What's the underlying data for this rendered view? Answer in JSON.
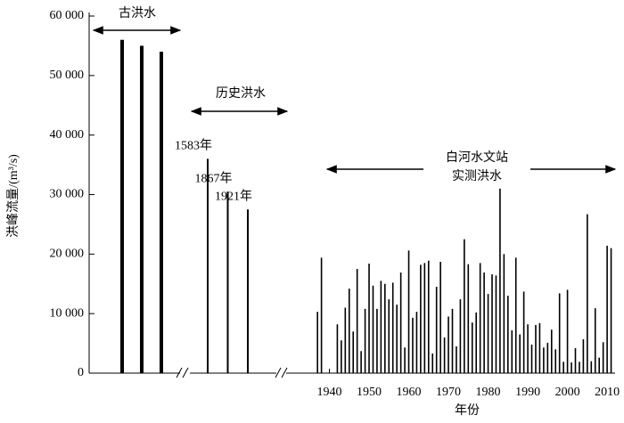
{
  "chart_data": {
    "type": "bar",
    "ylabel": "洪峰流量/(m³/s)",
    "xlabel": "年份",
    "ylim": [
      0,
      60000
    ],
    "yticks": [
      0,
      {
        "value": 10000,
        "label": "10 000"
      },
      {
        "value": 20000,
        "label": "20 000"
      },
      {
        "value": 30000,
        "label": "30 000"
      },
      {
        "value": 40000,
        "label": "40 000"
      },
      {
        "value": 50000,
        "label": "50 000"
      },
      {
        "value": 60000,
        "label": "60 000"
      }
    ],
    "xlim": [
      1930,
      2012
    ],
    "xticks": [
      1940,
      1950,
      1960,
      1970,
      1980,
      1990,
      2000,
      2010
    ],
    "color": "#000000",
    "paleo": {
      "name": "古洪水",
      "values": [
        56000,
        55000,
        54000
      ]
    },
    "historical": {
      "name": "历史洪水",
      "categories": [
        "1583年",
        "1867年",
        "1921年"
      ],
      "values": [
        36000,
        30500,
        27500
      ]
    },
    "measured": {
      "name": [
        "白河水文站",
        "实测洪水"
      ],
      "x": [
        1937,
        1938,
        1942,
        1943,
        1944,
        1945,
        1946,
        1947,
        1948,
        1949,
        1950,
        1951,
        1952,
        1953,
        1954,
        1955,
        1956,
        1957,
        1958,
        1959,
        1960,
        1961,
        1962,
        1963,
        1964,
        1965,
        1966,
        1967,
        1968,
        1969,
        1970,
        1971,
        1972,
        1973,
        1974,
        1975,
        1976,
        1977,
        1978,
        1979,
        1980,
        1981,
        1982,
        1983,
        1984,
        1985,
        1986,
        1987,
        1988,
        1989,
        1990,
        1991,
        1992,
        1993,
        1994,
        1995,
        1996,
        1997,
        1998,
        1999,
        2000,
        2001,
        2002,
        2003,
        2004,
        2005,
        2006,
        2007,
        2008,
        2009,
        2010,
        2011
      ],
      "values": [
        10300,
        19400,
        8200,
        5500,
        11000,
        14200,
        7000,
        17500,
        3700,
        10800,
        18400,
        14700,
        10800,
        15500,
        15000,
        12400,
        15200,
        11500,
        16900,
        4300,
        20600,
        9300,
        10300,
        18200,
        18500,
        18900,
        3300,
        14500,
        18700,
        6000,
        9500,
        10800,
        4500,
        12400,
        22500,
        18300,
        8500,
        10200,
        18500,
        16900,
        13300,
        16600,
        16400,
        31000,
        20000,
        13000,
        7200,
        19400,
        6500,
        13700,
        8200,
        4800,
        8100,
        8400,
        4300,
        5100,
        7300,
        4000,
        13400,
        1900,
        14000,
        1800,
        4200,
        1900,
        5700,
        26700,
        2000,
        10900,
        2600,
        5200,
        21400,
        21000
      ]
    }
  }
}
